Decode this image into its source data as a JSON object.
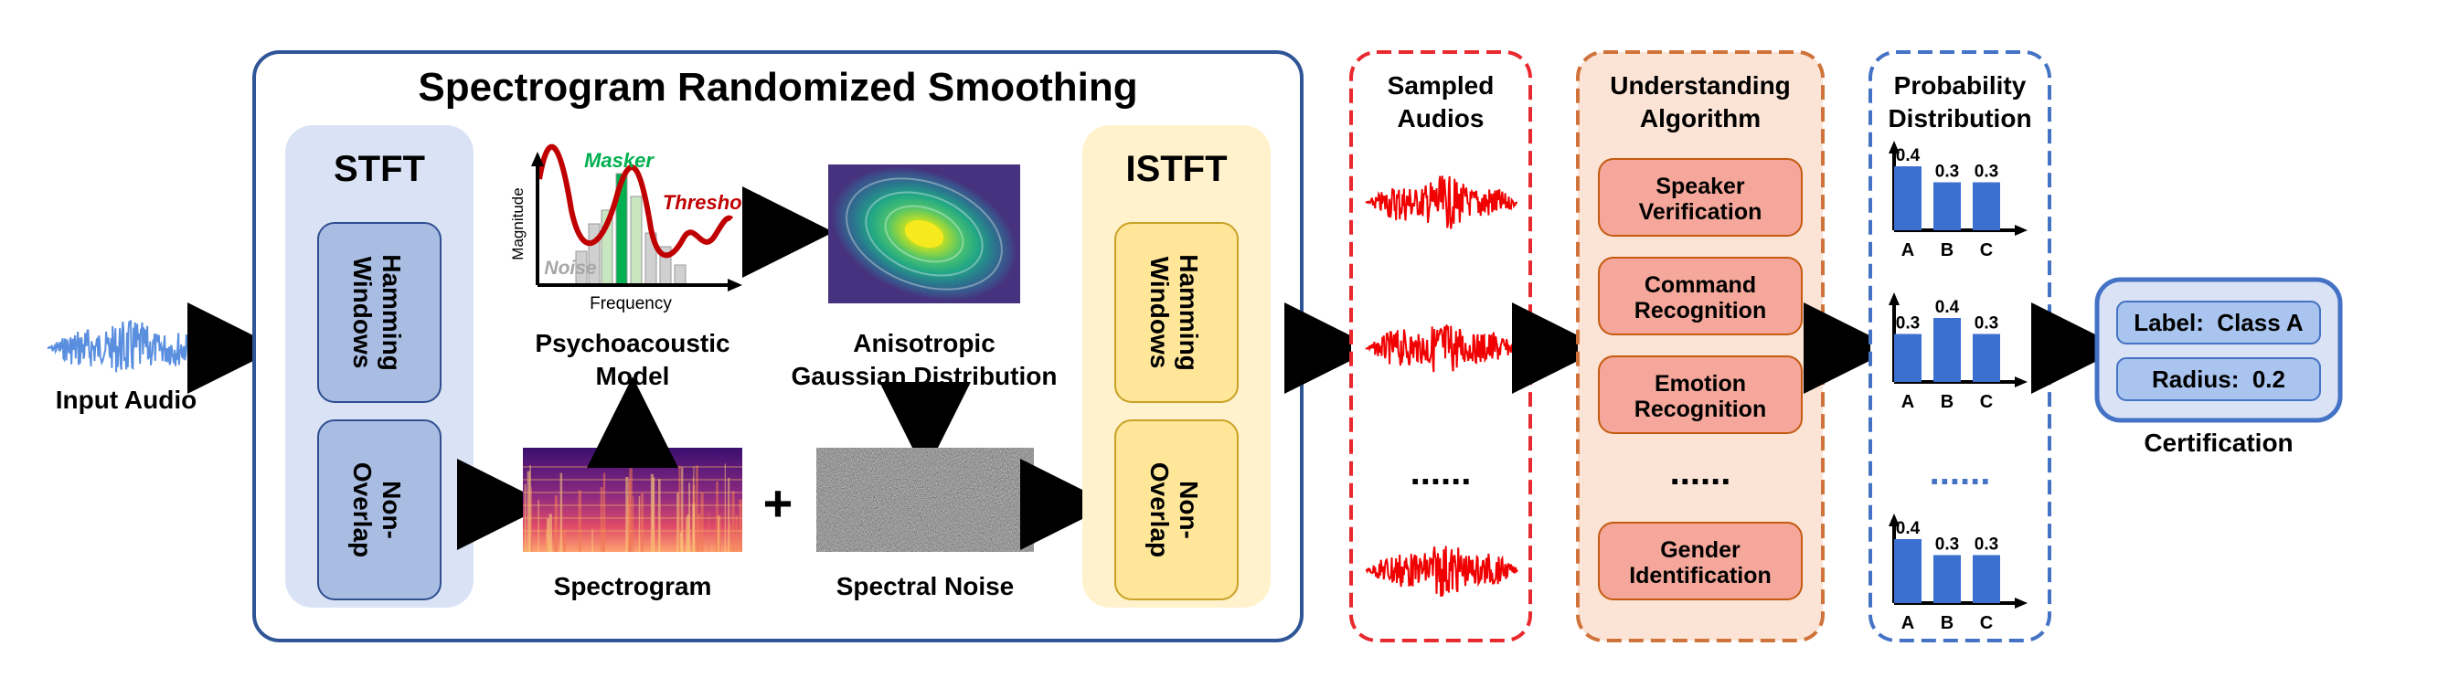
{
  "input": {
    "label": "Input Audio"
  },
  "srs": {
    "title": "Spectrogram Randomized Smoothing",
    "stft": {
      "title": "STFT",
      "block1": [
        "Hamming",
        "Windows"
      ],
      "block2": [
        "Non-",
        "Overlap"
      ]
    },
    "istft": {
      "title": "ISTFT",
      "block1": [
        "Hamming",
        "Windows"
      ],
      "block2": [
        "Non-",
        "Overlap"
      ]
    },
    "psycho": {
      "caption": [
        "Psychoacoustic",
        "Model"
      ],
      "ylabel": "Magnitude",
      "xlabel": "Frequency",
      "masker": "Masker",
      "threshold": "Threshold",
      "noise": "Noise"
    },
    "gaussian": {
      "caption": [
        "Anisotropic",
        "Gaussian Distribution"
      ]
    },
    "spectrogram": {
      "caption": "Spectrogram"
    },
    "plus": "+",
    "spectral_noise": {
      "caption": "Spectral Noise"
    }
  },
  "sampled": {
    "title": [
      "Sampled",
      "Audios"
    ],
    "ellipsis": "......"
  },
  "understanding": {
    "title": [
      "Understanding",
      "Algorithm"
    ],
    "items": [
      [
        "Speaker",
        "Verification"
      ],
      [
        "Command",
        "Recognition"
      ],
      [
        "Emotion",
        "Recognition"
      ],
      [
        "Gender",
        "Identification"
      ]
    ],
    "ellipsis": "......"
  },
  "probability": {
    "title": [
      "Probability",
      "Distribution"
    ],
    "ellipsis": "......",
    "charts": [
      {
        "categories": [
          "A",
          "B",
          "C"
        ],
        "values": [
          0.4,
          0.3,
          0.3
        ],
        "labels": [
          "0.4",
          "0.3",
          "0.3"
        ]
      },
      {
        "categories": [
          "A",
          "B",
          "C"
        ],
        "values": [
          0.3,
          0.4,
          0.3
        ],
        "labels": [
          "0.3",
          "0.4",
          "0.3"
        ]
      },
      {
        "categories": [
          "A",
          "B",
          "C"
        ],
        "values": [
          0.4,
          0.3,
          0.3
        ],
        "labels": [
          "0.4",
          "0.3",
          "0.3"
        ]
      }
    ]
  },
  "certification": {
    "label_text": "Label:  Class A",
    "radius_text": "Radius:  0.2",
    "caption": "Certification"
  },
  "colors": {
    "main_border": "#2f5597",
    "stft_bg": "#dae3f5",
    "stft_block": "#a9bde3",
    "istft_bg": "#fff2cc",
    "istft_block": "#ffe699",
    "istft_block_border": "#c9a227",
    "sampled_border": "#e8292d",
    "waveform_red": "#f00000",
    "understanding_border": "#d0733a",
    "understanding_bg": "#fbe3d5",
    "understanding_item": "#f4a79a",
    "prob_border": "#4472c4",
    "bar_blue": "#3b6fd0",
    "cert_bg": "#dae3f5",
    "masker_green": "#00b050",
    "threshold_red": "#c00000",
    "input_wave": "#5a8fe0"
  }
}
